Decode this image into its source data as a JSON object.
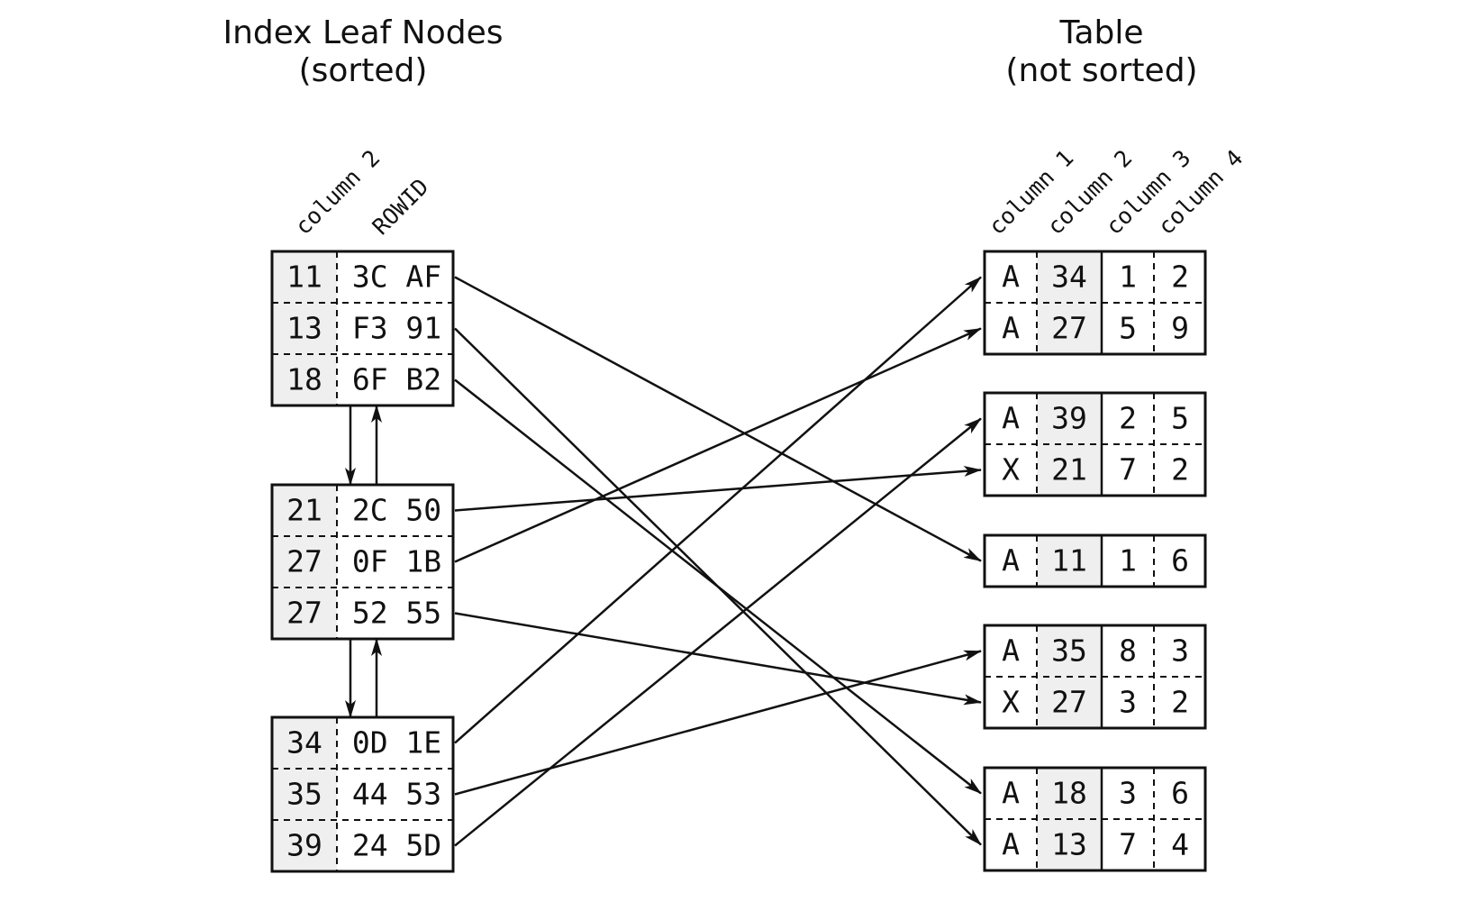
{
  "titles": {
    "index_line1": "Index Leaf Nodes",
    "index_line2": "(sorted)",
    "table_line1": "Table",
    "table_line2": "(not sorted)"
  },
  "index_headers": [
    "column 2",
    "ROWID"
  ],
  "table_headers": [
    "column 1",
    "column 2",
    "column 3",
    "column 4"
  ],
  "index_nodes": [
    [
      {
        "key": "11",
        "rowid": "3C AF"
      },
      {
        "key": "13",
        "rowid": "F3 91"
      },
      {
        "key": "18",
        "rowid": "6F B2"
      }
    ],
    [
      {
        "key": "21",
        "rowid": "2C 50"
      },
      {
        "key": "27",
        "rowid": "0F 1B"
      },
      {
        "key": "27",
        "rowid": "52 55"
      }
    ],
    [
      {
        "key": "34",
        "rowid": "0D 1E"
      },
      {
        "key": "35",
        "rowid": "44 53"
      },
      {
        "key": "39",
        "rowid": "24 5D"
      }
    ]
  ],
  "table_blocks": [
    [
      [
        "A",
        "34",
        "1",
        "2"
      ],
      [
        "A",
        "27",
        "5",
        "9"
      ]
    ],
    [
      [
        "A",
        "39",
        "2",
        "5"
      ],
      [
        "X",
        "21",
        "7",
        "2"
      ]
    ],
    [
      [
        "A",
        "11",
        "1",
        "6"
      ]
    ],
    [
      [
        "A",
        "35",
        "8",
        "3"
      ],
      [
        "X",
        "27",
        "3",
        "2"
      ]
    ],
    [
      [
        "A",
        "18",
        "3",
        "6"
      ],
      [
        "A",
        "13",
        "7",
        "4"
      ]
    ]
  ],
  "pointers": [
    {
      "from": [
        0,
        0
      ],
      "to": [
        2,
        0
      ]
    },
    {
      "from": [
        0,
        1
      ],
      "to": [
        4,
        1
      ]
    },
    {
      "from": [
        0,
        2
      ],
      "to": [
        4,
        0
      ]
    },
    {
      "from": [
        1,
        0
      ],
      "to": [
        1,
        1
      ]
    },
    {
      "from": [
        1,
        1
      ],
      "to": [
        0,
        1
      ]
    },
    {
      "from": [
        1,
        2
      ],
      "to": [
        3,
        1
      ]
    },
    {
      "from": [
        2,
        0
      ],
      "to": [
        0,
        0
      ]
    },
    {
      "from": [
        2,
        1
      ],
      "to": [
        3,
        0
      ]
    },
    {
      "from": [
        2,
        2
      ],
      "to": [
        1,
        0
      ]
    }
  ]
}
